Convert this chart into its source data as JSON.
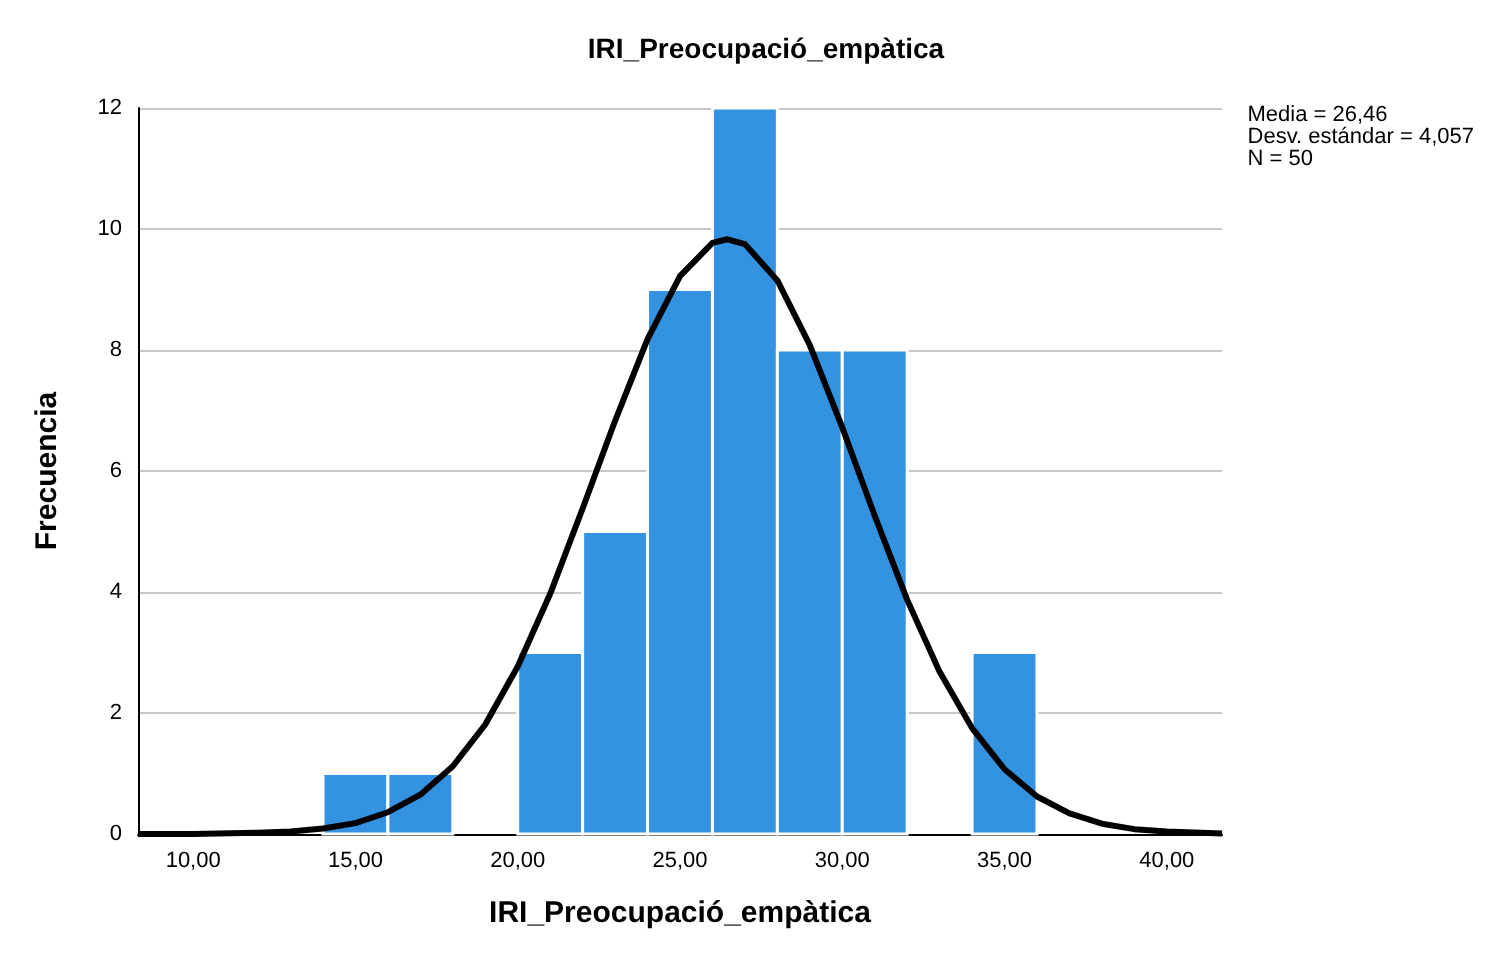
{
  "chart_data": {
    "type": "histogram",
    "title": "IRI_Preocupació_empàtica",
    "xlabel": "IRI_Preocupació_empàtica",
    "ylabel": "Frecuencia",
    "bins": [
      14,
      16,
      18,
      20,
      22,
      24,
      26,
      28,
      30,
      32,
      34,
      36
    ],
    "values": [
      1,
      1,
      0,
      3,
      5,
      9,
      12,
      8,
      8,
      0,
      3
    ],
    "color": "#3393e0",
    "series": [
      {
        "type": "line",
        "color": "#000000",
        "x": [
          8.3,
          10,
          12,
          13,
          14,
          15,
          16,
          17,
          18,
          19,
          20,
          21,
          22,
          23,
          24,
          25,
          26,
          26.46,
          27,
          28,
          29,
          30,
          31,
          32,
          33,
          34,
          35,
          36,
          37,
          38,
          39,
          40,
          41.7
        ],
        "values": [
          0,
          0,
          0.02,
          0.04,
          0.09,
          0.18,
          0.36,
          0.65,
          1.12,
          1.81,
          2.77,
          3.97,
          5.38,
          6.83,
          8.18,
          9.22,
          9.77,
          9.83,
          9.75,
          9.15,
          8.08,
          6.72,
          5.26,
          3.87,
          2.68,
          1.75,
          1.07,
          0.62,
          0.34,
          0.17,
          0.08,
          0.04,
          0.01
        ]
      }
    ],
    "marker": "none",
    "line_style": "solid",
    "xlim": [
      8.3,
      41.7
    ],
    "xticks": [
      {
        "value": 10,
        "label": "10,00"
      },
      {
        "value": 15,
        "label": "15,00"
      },
      {
        "value": 20,
        "label": "20,00"
      },
      {
        "value": 25,
        "label": "25,00"
      },
      {
        "value": 30,
        "label": "30,00"
      },
      {
        "value": 35,
        "label": "35,00"
      },
      {
        "value": 40,
        "label": "40,00"
      }
    ],
    "ylim": [
      0,
      12
    ],
    "yticks": [
      0,
      2,
      4,
      6,
      8,
      10,
      12
    ],
    "grid": "y",
    "annotations": [
      "Media = 26,46\nDesv. estándar = 4,057\nN = 50"
    ]
  }
}
